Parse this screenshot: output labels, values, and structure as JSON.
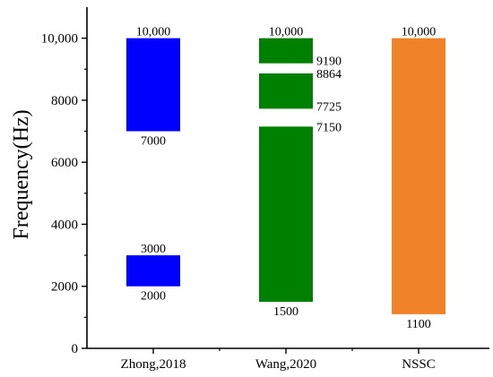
{
  "chart_data": {
    "type": "bar",
    "ylabel": "Frequency(Hz)",
    "ylim": [
      0,
      11000
    ],
    "y_ticks": [
      0,
      2000,
      4000,
      6000,
      8000,
      10000
    ],
    "y_tick_labels": [
      "0",
      "2000",
      "4000",
      "6000",
      "8000",
      "10,000"
    ],
    "categories": [
      "Zhong,2018",
      "Wang,2020",
      "NSSC"
    ],
    "series": [
      {
        "category": "Zhong,2018",
        "color": "#0000ff",
        "ranges": [
          {
            "low": 7000,
            "high": 10000,
            "low_label": "7000",
            "high_label": "10,000"
          },
          {
            "low": 2000,
            "high": 3000,
            "low_label": "2000",
            "high_label": "3000"
          }
        ]
      },
      {
        "category": "Wang,2020",
        "color": "#008000",
        "ranges": [
          {
            "low": 9190,
            "high": 10000,
            "low_label": "9190",
            "high_label": "10,000"
          },
          {
            "low": 7725,
            "high": 8864,
            "low_label": "7725",
            "high_label": "8864"
          },
          {
            "low": 1500,
            "high": 7150,
            "low_label": "1500",
            "high_label": "7150"
          }
        ]
      },
      {
        "category": "NSSC",
        "color": "#f0822a",
        "ranges": [
          {
            "low": 1100,
            "high": 10000,
            "low_label": "1100",
            "high_label": "10,000"
          }
        ]
      }
    ]
  }
}
